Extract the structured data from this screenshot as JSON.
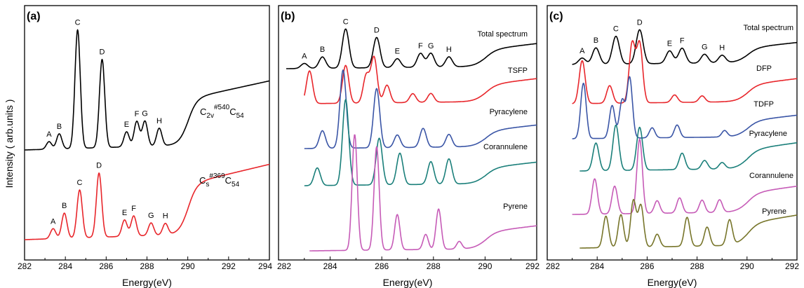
{
  "colors": {
    "black": "#000000",
    "red": "#e8262b",
    "blue": "#3a55a6",
    "teal": "#1a7f7a",
    "magenta": "#c65bb7",
    "olive": "#77752a"
  },
  "y_axis_title": "Intensity ( arb.units )",
  "chart_data": [
    {
      "type": "line",
      "panel_label": "(a)",
      "xlabel": "Energy(eV)",
      "xlim": [
        282,
        294
      ],
      "x_ticks": [
        282,
        284,
        286,
        288,
        290,
        292,
        294
      ],
      "x_tick_labels": [
        "282",
        "284",
        "286",
        "288",
        "290",
        "292",
        "294"
      ],
      "grid": false,
      "series": [
        {
          "color_key": "black",
          "label_parts": {
            "pre": "C",
            "sub1": "2v",
            "sup": "#540",
            "post": "C",
            "sub2": "54"
          },
          "peak_labels": [
            "A",
            "B",
            "C",
            "D",
            "E",
            "F",
            "G",
            "H"
          ],
          "peaks": [
            {
              "x": 283.2,
              "y": 0.06
            },
            {
              "x": 283.7,
              "y": 0.12
            },
            {
              "x": 284.6,
              "y": 0.94
            },
            {
              "x": 285.8,
              "y": 0.7
            },
            {
              "x": 287.0,
              "y": 0.12
            },
            {
              "x": 287.5,
              "y": 0.2
            },
            {
              "x": 287.9,
              "y": 0.2
            },
            {
              "x": 288.6,
              "y": 0.14
            }
          ]
        },
        {
          "color_key": "red",
          "label_parts": {
            "pre": "C",
            "sub1": "s",
            "sup": "#369",
            "post": "C",
            "sub2": "54"
          },
          "peak_labels": [
            "A",
            "B",
            "C",
            "D",
            "E",
            "F",
            "G",
            "H"
          ],
          "peaks": [
            {
              "x": 283.4,
              "y": 0.08
            },
            {
              "x": 283.95,
              "y": 0.2
            },
            {
              "x": 284.7,
              "y": 0.38
            },
            {
              "x": 285.65,
              "y": 0.51
            },
            {
              "x": 286.9,
              "y": 0.13
            },
            {
              "x": 287.35,
              "y": 0.16
            },
            {
              "x": 288.2,
              "y": 0.1
            },
            {
              "x": 288.9,
              "y": 0.09
            }
          ]
        }
      ]
    },
    {
      "type": "line",
      "panel_label": "(b)",
      "xlabel": "Energy(eV)",
      "xlim": [
        282,
        292
      ],
      "x_ticks": [
        282,
        284,
        286,
        288,
        290,
        292
      ],
      "x_tick_labels": [
        "282",
        "284",
        "286",
        "288",
        "290",
        "292"
      ],
      "grid": false,
      "series": [
        {
          "name": "Total spectrum",
          "color_key": "black",
          "peak_labels": [
            "A",
            "B",
            "C",
            "D",
            "E",
            "F",
            "G",
            "H"
          ],
          "peaks": [
            {
              "x": 283.0,
              "y": 0.04
            },
            {
              "x": 283.7,
              "y": 0.09
            },
            {
              "x": 284.6,
              "y": 0.31
            },
            {
              "x": 285.8,
              "y": 0.24
            },
            {
              "x": 286.6,
              "y": 0.07
            },
            {
              "x": 287.5,
              "y": 0.11
            },
            {
              "x": 287.9,
              "y": 0.11
            },
            {
              "x": 288.6,
              "y": 0.08
            }
          ]
        },
        {
          "name": "TSFP",
          "color_key": "red",
          "peaks": [
            {
              "x": 283.2,
              "y": 0.26
            },
            {
              "x": 284.6,
              "y": 0.3
            },
            {
              "x": 285.4,
              "y": 0.22
            },
            {
              "x": 285.7,
              "y": 0.36
            },
            {
              "x": 286.2,
              "y": 0.14
            },
            {
              "x": 287.2,
              "y": 0.07
            },
            {
              "x": 287.9,
              "y": 0.07
            }
          ]
        },
        {
          "name": "Pyracylene",
          "color_key": "blue",
          "peaks": [
            {
              "x": 283.7,
              "y": 0.14
            },
            {
              "x": 284.5,
              "y": 0.62
            },
            {
              "x": 285.8,
              "y": 0.47
            },
            {
              "x": 286.6,
              "y": 0.1
            },
            {
              "x": 287.6,
              "y": 0.15
            },
            {
              "x": 288.6,
              "y": 0.1
            }
          ]
        },
        {
          "name": "Corannulene",
          "color_key": "teal",
          "peaks": [
            {
              "x": 283.5,
              "y": 0.14
            },
            {
              "x": 284.6,
              "y": 0.68
            },
            {
              "x": 285.9,
              "y": 0.37
            },
            {
              "x": 286.7,
              "y": 0.25
            },
            {
              "x": 287.9,
              "y": 0.18
            },
            {
              "x": 288.6,
              "y": 0.2
            }
          ]
        },
        {
          "name": "Pyrene",
          "color_key": "magenta",
          "peaks": [
            {
              "x": 284.95,
              "y": 0.92
            },
            {
              "x": 285.8,
              "y": 0.82
            },
            {
              "x": 286.6,
              "y": 0.28
            },
            {
              "x": 287.7,
              "y": 0.12
            },
            {
              "x": 288.2,
              "y": 0.32
            },
            {
              "x": 289.0,
              "y": 0.06
            }
          ]
        }
      ]
    },
    {
      "type": "line",
      "panel_label": "(c)",
      "xlabel": "Energy(eV)",
      "xlim": [
        282,
        292
      ],
      "x_ticks": [
        282,
        284,
        286,
        288,
        290,
        292
      ],
      "x_tick_labels": [
        "282",
        "284",
        "286",
        "288",
        "290",
        "292"
      ],
      "grid": false,
      "series": [
        {
          "name": "Total spectrum",
          "color_key": "black",
          "peak_labels": [
            "A",
            "B",
            "C",
            "D",
            "E",
            "F",
            "G",
            "H"
          ],
          "peaks": [
            {
              "x": 283.4,
              "y": 0.05
            },
            {
              "x": 283.95,
              "y": 0.13
            },
            {
              "x": 284.75,
              "y": 0.22
            },
            {
              "x": 285.7,
              "y": 0.27
            },
            {
              "x": 286.9,
              "y": 0.1
            },
            {
              "x": 287.4,
              "y": 0.12
            },
            {
              "x": 288.3,
              "y": 0.07
            },
            {
              "x": 289.0,
              "y": 0.06
            }
          ]
        },
        {
          "name": "DFP",
          "color_key": "red",
          "peaks": [
            {
              "x": 283.4,
              "y": 0.34
            },
            {
              "x": 284.5,
              "y": 0.14
            },
            {
              "x": 285.4,
              "y": 0.47
            },
            {
              "x": 285.7,
              "y": 0.47
            },
            {
              "x": 287.1,
              "y": 0.06
            },
            {
              "x": 288.2,
              "y": 0.05
            }
          ]
        },
        {
          "name": "TDFP",
          "color_key": "blue",
          "peaks": [
            {
              "x": 283.45,
              "y": 0.44
            },
            {
              "x": 284.6,
              "y": 0.26
            },
            {
              "x": 285.0,
              "y": 0.3
            },
            {
              "x": 285.3,
              "y": 0.48
            },
            {
              "x": 286.2,
              "y": 0.08
            },
            {
              "x": 287.2,
              "y": 0.1
            },
            {
              "x": 289.1,
              "y": 0.05
            }
          ]
        },
        {
          "name": "Pyracylene",
          "color_key": "teal",
          "peaks": [
            {
              "x": 283.95,
              "y": 0.22
            },
            {
              "x": 284.75,
              "y": 0.36
            },
            {
              "x": 285.7,
              "y": 0.34
            },
            {
              "x": 287.4,
              "y": 0.13
            },
            {
              "x": 288.3,
              "y": 0.07
            },
            {
              "x": 289.0,
              "y": 0.05
            }
          ]
        },
        {
          "name": "Corannulene",
          "color_key": "magenta",
          "peaks": [
            {
              "x": 283.9,
              "y": 0.28
            },
            {
              "x": 284.7,
              "y": 0.22
            },
            {
              "x": 285.7,
              "y": 0.59
            },
            {
              "x": 286.4,
              "y": 0.1
            },
            {
              "x": 287.3,
              "y": 0.12
            },
            {
              "x": 288.2,
              "y": 0.1
            },
            {
              "x": 288.9,
              "y": 0.1
            }
          ]
        },
        {
          "name": "Pyrene",
          "color_key": "olive",
          "peaks": [
            {
              "x": 284.35,
              "y": 0.25
            },
            {
              "x": 284.95,
              "y": 0.26
            },
            {
              "x": 285.45,
              "y": 0.37
            },
            {
              "x": 285.75,
              "y": 0.33
            },
            {
              "x": 286.4,
              "y": 0.1
            },
            {
              "x": 287.6,
              "y": 0.23
            },
            {
              "x": 288.4,
              "y": 0.15
            },
            {
              "x": 289.3,
              "y": 0.2
            }
          ]
        }
      ]
    }
  ]
}
